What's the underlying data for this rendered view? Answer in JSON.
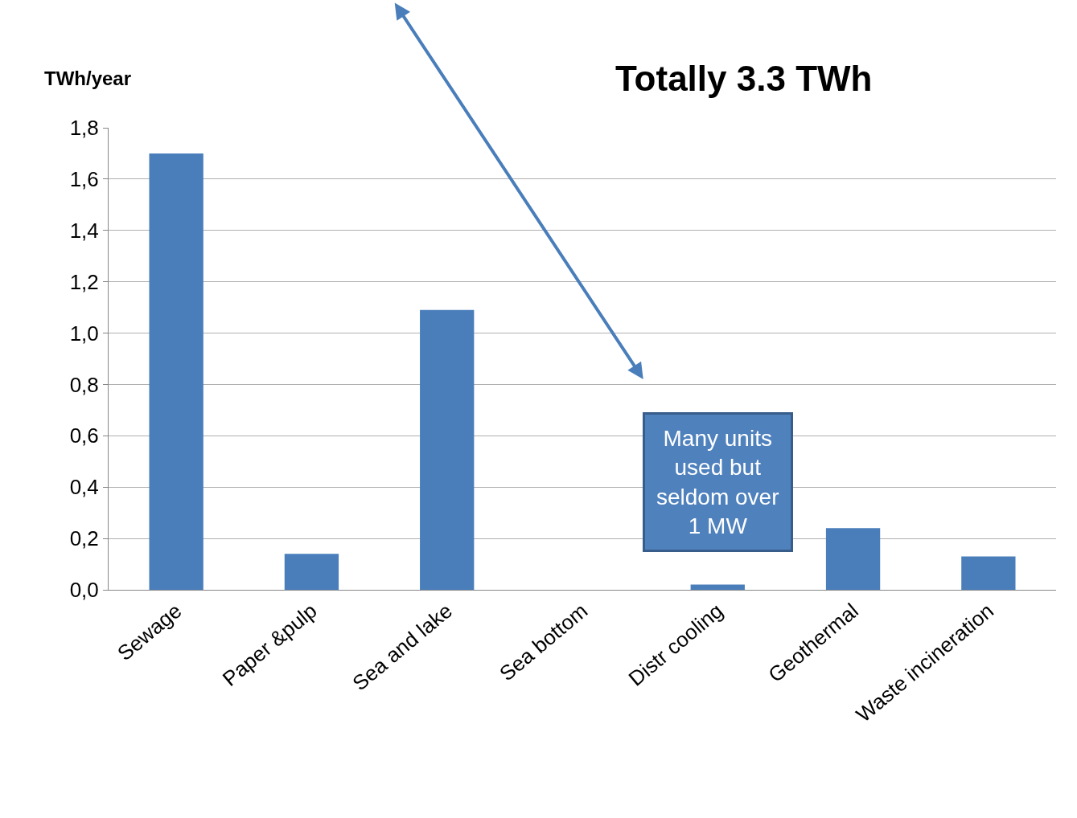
{
  "chart_data": {
    "type": "bar",
    "ylabel": "TWh/year",
    "categories": [
      "Sewage",
      "Paper &pulp",
      "Sea and lake",
      "Sea bottom",
      "Distr cooling",
      "Geothermal",
      "Waste incineration"
    ],
    "values": [
      1.7,
      0.14,
      1.09,
      0,
      0.02,
      0.24,
      0.13
    ],
    "color": "#4a7ebb",
    "ylim": [
      0,
      1.8
    ],
    "yticks": [
      {
        "value": 0,
        "label": "0,0"
      },
      {
        "value": 0.2,
        "label": "0,2"
      },
      {
        "value": 0.4,
        "label": "0,4"
      },
      {
        "value": 0.6,
        "label": "0,6"
      },
      {
        "value": 0.8,
        "label": "0,8"
      },
      {
        "value": 1.0,
        "label": "1,0"
      },
      {
        "value": 1.2,
        "label": "1,2"
      },
      {
        "value": 1.4,
        "label": "1,4"
      },
      {
        "value": 1.6,
        "label": "1,6"
      },
      {
        "value": 1.8,
        "label": "1,8"
      }
    ],
    "grid": "y",
    "annotations": [
      "Totally 3.3 TWh",
      "Many units used but seldom over 1 MW"
    ]
  }
}
